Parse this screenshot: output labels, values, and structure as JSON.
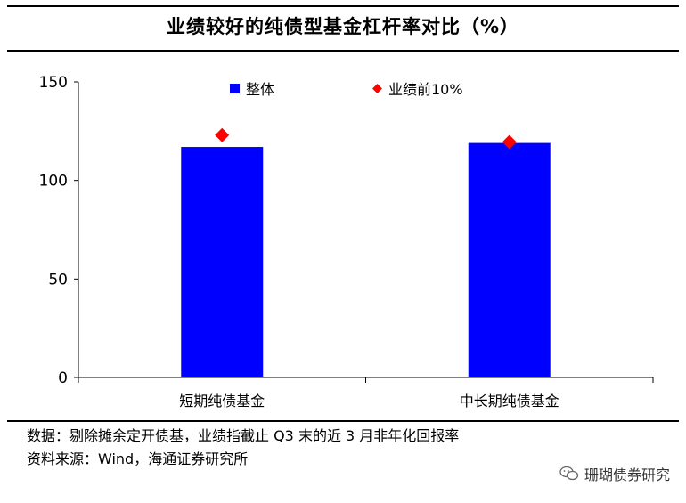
{
  "title": "业绩较好的纯债型基金杠杆率对比（%）",
  "chart_data": {
    "type": "bar",
    "categories": [
      "短期纯债基金",
      "中长期纯债基金"
    ],
    "series": [
      {
        "name": "整体",
        "kind": "bar",
        "color": "#0000FF",
        "values": [
          117,
          119
        ]
      },
      {
        "name": "业绩前10%",
        "kind": "marker",
        "color": "#FF0000",
        "values": [
          123,
          119.5
        ]
      }
    ],
    "ylim": [
      0,
      150
    ],
    "yticks": [
      0,
      50,
      100,
      150
    ],
    "grid": false,
    "legend_position": "top"
  },
  "notes": {
    "line1": "数据：剔除摊余定开债基，业绩指截止 Q3 末的近 3 月非年化回报率",
    "line2": "资料来源：Wind，海通证券研究所"
  },
  "watermark": {
    "icon": "wechat-icon",
    "text": "珊瑚债券研究"
  }
}
